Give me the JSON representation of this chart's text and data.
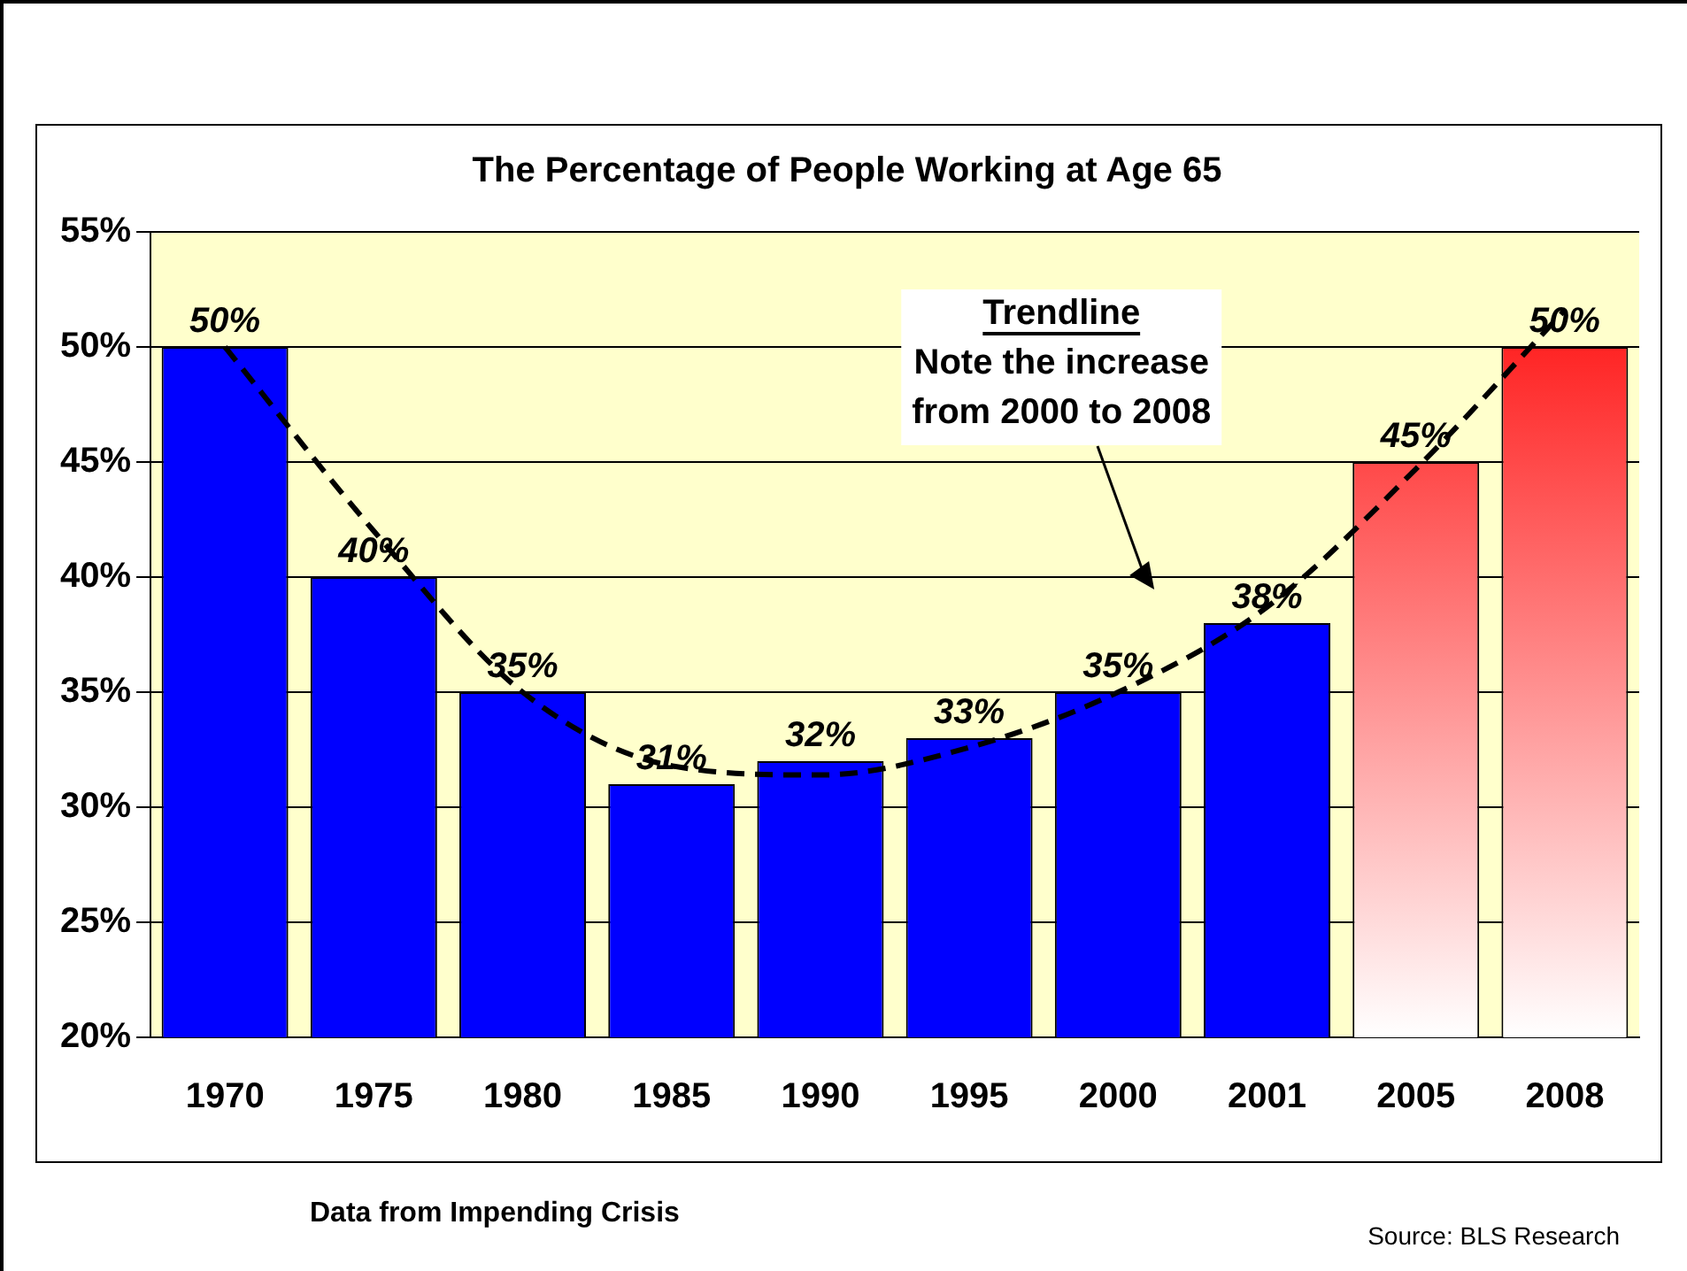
{
  "chart_data": {
    "type": "bar",
    "title": "The Percentage of People Working at Age 65",
    "categories": [
      "1970",
      "1975",
      "1980",
      "1985",
      "1990",
      "1995",
      "2000",
      "2001",
      "2005",
      "2008"
    ],
    "series": [
      {
        "color": "#0000ff",
        "colors": [
          "#0000ff",
          "#0000ff",
          "#0000ff",
          "#0000ff",
          "#0000ff",
          "#0000ff",
          "#0000ff",
          "#0000ff",
          "#ff0000",
          "#ff0000"
        ],
        "values": [
          50,
          40,
          35,
          31,
          32,
          33,
          35,
          38,
          45,
          50
        ],
        "value_labels": [
          "50%",
          "40%",
          "35%",
          "31%",
          "32%",
          "33%",
          "35%",
          "38%",
          "45%",
          "50%"
        ]
      },
      {
        "type": "line",
        "color": "#000000",
        "line_style": "dashed",
        "marker": "none",
        "values": [
          50,
          42,
          35,
          31.8,
          31.4,
          32.6,
          35,
          38.7,
          44.7,
          51.6
        ]
      }
    ],
    "ylim": [
      20,
      55
    ],
    "yticks": [
      {
        "value": 20,
        "label": "20%"
      },
      {
        "value": 25,
        "label": "25%"
      },
      {
        "value": 30,
        "label": "30%"
      },
      {
        "value": 35,
        "label": "35%"
      },
      {
        "value": 40,
        "label": "40%"
      },
      {
        "value": 45,
        "label": "45%"
      },
      {
        "value": 50,
        "label": "50%"
      },
      {
        "value": 55,
        "label": "55%"
      }
    ],
    "grid": "y",
    "legend": false,
    "annotations": [
      "Trendline",
      "Note the increase",
      "from 2000 to 2008",
      "Data from Impending Crisis",
      "Source: BLS Research"
    ]
  }
}
